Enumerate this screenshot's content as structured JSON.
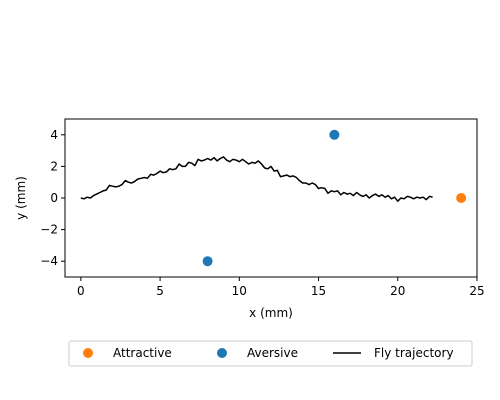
{
  "chart_data": {
    "type": "scatter",
    "title": "",
    "xlabel": "x (mm)",
    "ylabel": "y (mm)",
    "xlim": [
      -1,
      25
    ],
    "ylim": [
      -5,
      5
    ],
    "x_ticks": [
      0,
      5,
      10,
      15,
      20,
      25
    ],
    "y_ticks": [
      -4,
      -2,
      0,
      2,
      4
    ],
    "grid": false,
    "legend_position": "bottom-center",
    "series": [
      {
        "name": "Attractive",
        "kind": "points",
        "color": "#ff7f0e",
        "points": [
          [
            24,
            0
          ]
        ]
      },
      {
        "name": "Aversive",
        "kind": "points",
        "color": "#1f77b4",
        "points": [
          [
            16,
            4
          ],
          [
            8,
            -4
          ]
        ]
      },
      {
        "name": "Fly trajectory",
        "kind": "line",
        "color": "#000000",
        "points": [
          [
            0,
            0.0
          ],
          [
            0.2,
            -0.05
          ],
          [
            0.4,
            0.05
          ],
          [
            0.6,
            0.0
          ],
          [
            0.8,
            0.15
          ],
          [
            1.0,
            0.25
          ],
          [
            1.2,
            0.35
          ],
          [
            1.4,
            0.45
          ],
          [
            1.6,
            0.5
          ],
          [
            1.8,
            0.8
          ],
          [
            2.0,
            0.75
          ],
          [
            2.2,
            0.7
          ],
          [
            2.4,
            0.75
          ],
          [
            2.6,
            0.85
          ],
          [
            2.8,
            1.1
          ],
          [
            3.0,
            1.0
          ],
          [
            3.2,
            0.95
          ],
          [
            3.4,
            1.05
          ],
          [
            3.6,
            1.2
          ],
          [
            3.8,
            1.25
          ],
          [
            4.0,
            1.3
          ],
          [
            4.2,
            1.25
          ],
          [
            4.4,
            1.5
          ],
          [
            4.6,
            1.45
          ],
          [
            4.8,
            1.55
          ],
          [
            5.0,
            1.7
          ],
          [
            5.2,
            1.6
          ],
          [
            5.4,
            1.65
          ],
          [
            5.6,
            1.85
          ],
          [
            5.8,
            1.8
          ],
          [
            6.0,
            1.85
          ],
          [
            6.2,
            2.15
          ],
          [
            6.4,
            2.0
          ],
          [
            6.6,
            2.0
          ],
          [
            6.8,
            2.25
          ],
          [
            7.0,
            2.2
          ],
          [
            7.2,
            2.05
          ],
          [
            7.4,
            2.45
          ],
          [
            7.6,
            2.35
          ],
          [
            7.8,
            2.4
          ],
          [
            8.0,
            2.5
          ],
          [
            8.2,
            2.4
          ],
          [
            8.4,
            2.55
          ],
          [
            8.6,
            2.35
          ],
          [
            8.8,
            2.5
          ],
          [
            9.0,
            2.6
          ],
          [
            9.2,
            2.4
          ],
          [
            9.4,
            2.3
          ],
          [
            9.6,
            2.45
          ],
          [
            9.8,
            2.4
          ],
          [
            10.0,
            2.3
          ],
          [
            10.2,
            2.45
          ],
          [
            10.4,
            2.3
          ],
          [
            10.6,
            2.15
          ],
          [
            10.8,
            2.25
          ],
          [
            11.0,
            2.2
          ],
          [
            11.2,
            2.35
          ],
          [
            11.4,
            2.15
          ],
          [
            11.6,
            1.9
          ],
          [
            11.8,
            1.85
          ],
          [
            12.0,
            2.0
          ],
          [
            12.2,
            1.7
          ],
          [
            12.4,
            1.75
          ],
          [
            12.6,
            1.35
          ],
          [
            12.8,
            1.4
          ],
          [
            13.0,
            1.45
          ],
          [
            13.2,
            1.35
          ],
          [
            13.4,
            1.4
          ],
          [
            13.6,
            1.3
          ],
          [
            13.8,
            1.1
          ],
          [
            14.0,
            0.95
          ],
          [
            14.2,
            0.95
          ],
          [
            14.4,
            0.85
          ],
          [
            14.6,
            0.95
          ],
          [
            14.8,
            0.85
          ],
          [
            15.0,
            0.6
          ],
          [
            15.2,
            0.65
          ],
          [
            15.4,
            0.6
          ],
          [
            15.6,
            0.3
          ],
          [
            15.8,
            0.45
          ],
          [
            16.0,
            0.4
          ],
          [
            16.2,
            0.45
          ],
          [
            16.4,
            0.2
          ],
          [
            16.6,
            0.35
          ],
          [
            16.8,
            0.25
          ],
          [
            17.0,
            0.3
          ],
          [
            17.2,
            0.15
          ],
          [
            17.4,
            0.35
          ],
          [
            17.6,
            0.2
          ],
          [
            17.8,
            0.1
          ],
          [
            18.0,
            0.2
          ],
          [
            18.2,
            0.0
          ],
          [
            18.4,
            0.15
          ],
          [
            18.6,
            0.25
          ],
          [
            18.8,
            0.1
          ],
          [
            19.0,
            0.2
          ],
          [
            19.2,
            0.05
          ],
          [
            19.4,
            0.15
          ],
          [
            19.6,
            -0.05
          ],
          [
            19.8,
            0.05
          ],
          [
            20.0,
            -0.2
          ],
          [
            20.2,
            0.0
          ],
          [
            20.4,
            -0.05
          ],
          [
            20.6,
            0.1
          ],
          [
            20.8,
            0.05
          ],
          [
            21.0,
            -0.05
          ],
          [
            21.2,
            0.05
          ],
          [
            21.4,
            0.0
          ],
          [
            21.6,
            0.05
          ],
          [
            21.8,
            -0.1
          ],
          [
            22.0,
            0.1
          ],
          [
            22.2,
            0.05
          ]
        ]
      }
    ],
    "legend_entries": [
      "Attractive",
      "Aversive",
      "Fly trajectory"
    ]
  }
}
